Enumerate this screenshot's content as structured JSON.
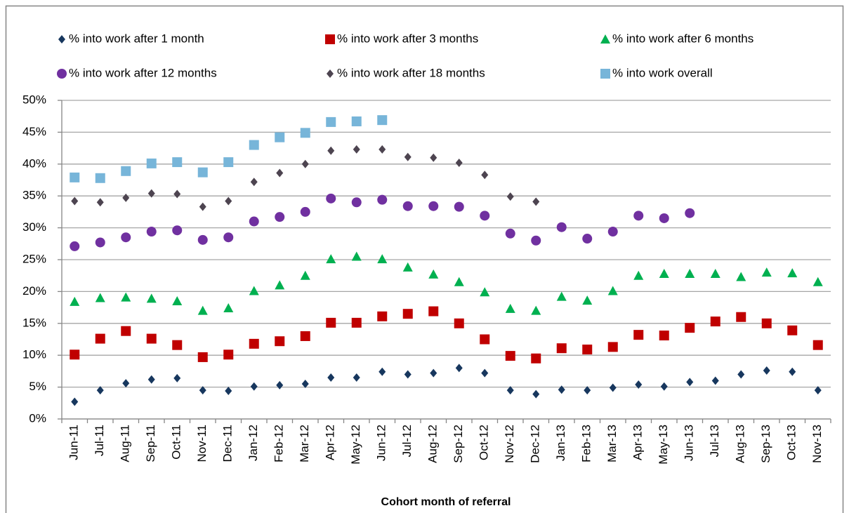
{
  "chart_data": {
    "type": "scatter",
    "x_label": "Cohort month of referral",
    "categories": [
      "Jun-11",
      "Jul-11",
      "Aug-11",
      "Sep-11",
      "Oct-11",
      "Nov-11",
      "Dec-11",
      "Jan-12",
      "Feb-12",
      "Mar-12",
      "Apr-12",
      "May-12",
      "Jun-12",
      "Jul-12",
      "Aug-12",
      "Sep-12",
      "Oct-12",
      "Nov-12",
      "Dec-12",
      "Jan-13",
      "Feb-13",
      "Mar-13",
      "Apr-13",
      "May-13",
      "Jun-13",
      "Jul-13",
      "Aug-13",
      "Sep-13",
      "Oct-13",
      "Nov-13"
    ],
    "series": [
      {
        "name": "% into work after 1 month",
        "color": "#17375e",
        "marker": "diamond",
        "values": [
          2.7,
          4.5,
          5.6,
          6.2,
          6.4,
          4.5,
          4.4,
          5.1,
          5.3,
          5.5,
          6.5,
          6.5,
          7.4,
          7.0,
          7.2,
          8.0,
          7.2,
          4.5,
          3.9,
          4.6,
          4.5,
          4.9,
          5.4,
          5.1,
          5.8,
          6.0,
          7.0,
          7.6,
          7.4,
          4.5
        ]
      },
      {
        "name": "% into work after 3 months",
        "color": "#c00000",
        "marker": "square",
        "values": [
          10.1,
          12.6,
          13.8,
          12.6,
          11.6,
          9.7,
          10.1,
          11.8,
          12.2,
          13.0,
          15.1,
          15.1,
          16.1,
          16.5,
          16.9,
          15.0,
          12.5,
          9.9,
          9.5,
          11.1,
          10.9,
          11.3,
          13.2,
          13.1,
          14.3,
          15.3,
          16.0,
          15.0,
          13.9,
          11.6
        ]
      },
      {
        "name": "% into work after 6 months",
        "color": "#00b050",
        "marker": "triangle",
        "values": [
          18.4,
          19.0,
          19.1,
          18.9,
          18.5,
          17.0,
          17.4,
          20.1,
          21.0,
          22.5,
          25.1,
          25.5,
          25.1,
          23.8,
          22.7,
          21.5,
          19.9,
          17.3,
          17.0,
          19.2,
          18.6,
          20.1,
          22.5,
          22.8,
          22.8,
          22.8,
          22.3,
          23.0,
          22.9,
          21.5
        ]
      },
      {
        "name": "% into work after 12 months",
        "color": "#7030a0",
        "marker": "circle",
        "values": [
          27.1,
          27.7,
          28.5,
          29.4,
          29.6,
          28.1,
          28.5,
          31.0,
          31.7,
          32.5,
          34.6,
          34.0,
          34.4,
          33.4,
          33.4,
          33.3,
          31.9,
          29.1,
          28.0,
          30.1,
          28.3,
          29.4,
          31.9,
          31.5,
          32.3,
          null,
          null,
          null,
          null,
          null
        ]
      },
      {
        "name": "% into work after 18 months",
        "color": "#4d4450",
        "marker": "diamond",
        "values": [
          34.2,
          34.0,
          34.7,
          35.4,
          35.3,
          33.3,
          34.2,
          37.2,
          38.6,
          40.0,
          42.1,
          42.3,
          42.3,
          41.1,
          41.0,
          40.2,
          38.3,
          34.9,
          34.1,
          null,
          null,
          null,
          null,
          null,
          null,
          null,
          null,
          null,
          null,
          null
        ]
      },
      {
        "name": "% into work overall",
        "color": "#77b5d9",
        "marker": "square",
        "values": [
          37.9,
          37.8,
          38.9,
          40.1,
          40.3,
          38.7,
          40.3,
          43.0,
          44.2,
          44.9,
          46.6,
          46.7,
          46.9,
          null,
          null,
          null,
          null,
          null,
          null,
          null,
          null,
          null,
          null,
          null,
          null,
          null,
          null,
          null,
          null,
          null
        ]
      }
    ],
    "ylim": [
      0,
      50
    ],
    "yticks": [
      {
        "value": 0,
        "label": "0%"
      },
      {
        "value": 5,
        "label": "5%"
      },
      {
        "value": 10,
        "label": "10%"
      },
      {
        "value": 15,
        "label": "15%"
      },
      {
        "value": 20,
        "label": "20%"
      },
      {
        "value": 25,
        "label": "25%"
      },
      {
        "value": 30,
        "label": "30%"
      },
      {
        "value": 35,
        "label": "35%"
      },
      {
        "value": 40,
        "label": "40%"
      },
      {
        "value": 45,
        "label": "45%"
      },
      {
        "value": 50,
        "label": "50%"
      }
    ],
    "grid": true,
    "legend": "top"
  }
}
